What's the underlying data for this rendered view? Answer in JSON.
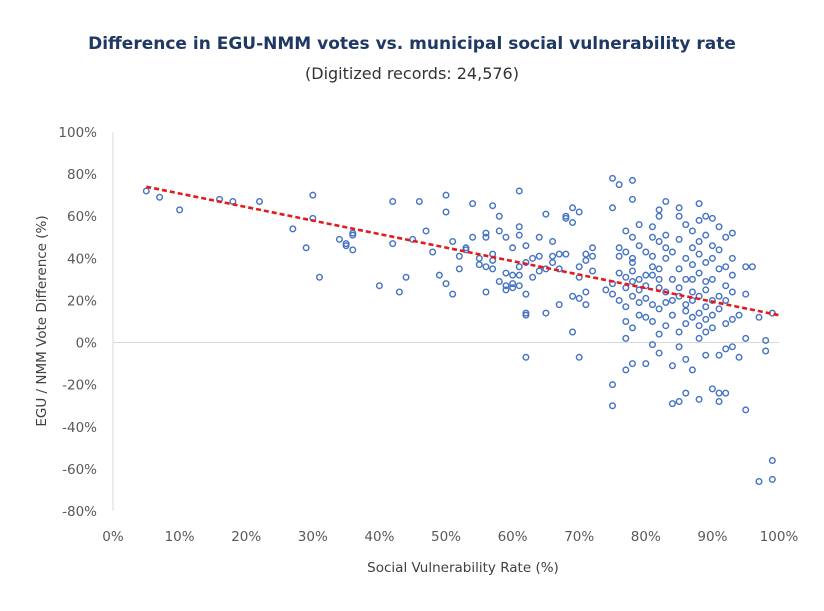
{
  "chart_data": {
    "type": "scatter",
    "title": "Difference in EGU-NMM votes vs. municipal social vulnerability rate",
    "subtitle": "(Digitized records: 24,576)",
    "xlabel": "Social Vulnerability Rate (%)",
    "ylabel": "EGU / NMM Vote Difference (%)",
    "xlim": [
      0,
      100
    ],
    "ylim": [
      -80,
      100
    ],
    "x_ticks": [
      "0%",
      "10%",
      "20%",
      "30%",
      "40%",
      "50%",
      "60%",
      "70%",
      "80%",
      "90%",
      "100%"
    ],
    "y_ticks": [
      "100%",
      "80%",
      "60%",
      "40%",
      "20%",
      "0%",
      "-20%",
      "-40%",
      "-60%",
      "-80%"
    ],
    "grid": false,
    "marker_color": "#4472c4",
    "trendline": {
      "type": "linear",
      "color": "#e41a1c",
      "style": "dashed",
      "start": [
        5,
        74
      ],
      "end": [
        100,
        13
      ]
    },
    "points": [
      [
        5,
        72
      ],
      [
        7,
        69
      ],
      [
        10,
        63
      ],
      [
        16,
        68
      ],
      [
        18,
        67
      ],
      [
        22,
        67
      ],
      [
        27,
        54
      ],
      [
        29,
        45
      ],
      [
        30,
        70
      ],
      [
        30,
        59
      ],
      [
        31,
        31
      ],
      [
        34,
        49
      ],
      [
        35,
        46
      ],
      [
        35,
        47
      ],
      [
        36,
        51
      ],
      [
        36,
        44
      ],
      [
        36,
        52
      ],
      [
        40,
        27
      ],
      [
        42,
        47
      ],
      [
        42,
        67
      ],
      [
        43,
        24
      ],
      [
        44,
        31
      ],
      [
        45,
        49
      ],
      [
        46,
        67
      ],
      [
        47,
        53
      ],
      [
        48,
        43
      ],
      [
        49,
        32
      ],
      [
        50,
        28
      ],
      [
        50,
        70
      ],
      [
        50,
        62
      ],
      [
        51,
        23
      ],
      [
        51,
        48
      ],
      [
        52,
        41
      ],
      [
        52,
        35
      ],
      [
        53,
        44
      ],
      [
        53,
        45
      ],
      [
        54,
        50
      ],
      [
        54,
        66
      ],
      [
        55,
        40
      ],
      [
        55,
        37
      ],
      [
        56,
        36
      ],
      [
        56,
        24
      ],
      [
        56,
        50
      ],
      [
        56,
        52
      ],
      [
        57,
        65
      ],
      [
        57,
        42
      ],
      [
        57,
        39
      ],
      [
        57,
        35
      ],
      [
        58,
        53
      ],
      [
        58,
        29
      ],
      [
        58,
        60
      ],
      [
        59,
        25
      ],
      [
        59,
        50
      ],
      [
        59,
        27
      ],
      [
        59,
        33
      ],
      [
        60,
        28
      ],
      [
        60,
        45
      ],
      [
        60,
        32
      ],
      [
        60,
        26
      ],
      [
        61,
        51
      ],
      [
        61,
        32
      ],
      [
        61,
        36
      ],
      [
        61,
        72
      ],
      [
        61,
        55
      ],
      [
        61,
        27
      ],
      [
        62,
        13
      ],
      [
        62,
        14
      ],
      [
        62,
        -7
      ],
      [
        62,
        38
      ],
      [
        62,
        46
      ],
      [
        62,
        23
      ],
      [
        63,
        40
      ],
      [
        63,
        31
      ],
      [
        64,
        41
      ],
      [
        64,
        50
      ],
      [
        64,
        34
      ],
      [
        65,
        14
      ],
      [
        65,
        61
      ],
      [
        65,
        35
      ],
      [
        66,
        38
      ],
      [
        66,
        41
      ],
      [
        66,
        48
      ],
      [
        67,
        18
      ],
      [
        67,
        42
      ],
      [
        67,
        35
      ],
      [
        68,
        42
      ],
      [
        68,
        59
      ],
      [
        68,
        60
      ],
      [
        69,
        57
      ],
      [
        69,
        5
      ],
      [
        69,
        22
      ],
      [
        69,
        64
      ],
      [
        70,
        -7
      ],
      [
        70,
        36
      ],
      [
        70,
        31
      ],
      [
        70,
        62
      ],
      [
        70,
        21
      ],
      [
        71,
        18
      ],
      [
        71,
        39
      ],
      [
        71,
        24
      ],
      [
        71,
        42
      ],
      [
        72,
        45
      ],
      [
        72,
        41
      ],
      [
        72,
        34
      ],
      [
        74,
        25
      ],
      [
        75,
        78
      ],
      [
        75,
        -20
      ],
      [
        75,
        -30
      ],
      [
        75,
        64
      ],
      [
        75,
        23
      ],
      [
        75,
        28
      ],
      [
        76,
        75
      ],
      [
        76,
        41
      ],
      [
        76,
        33
      ],
      [
        76,
        20
      ],
      [
        76,
        45
      ],
      [
        77,
        -13
      ],
      [
        77,
        2
      ],
      [
        77,
        53
      ],
      [
        77,
        43
      ],
      [
        77,
        31
      ],
      [
        77,
        26
      ],
      [
        77,
        17
      ],
      [
        77,
        10
      ],
      [
        78,
        77
      ],
      [
        78,
        -10
      ],
      [
        78,
        68
      ],
      [
        78,
        38
      ],
      [
        78,
        29
      ],
      [
        78,
        50
      ],
      [
        78,
        7
      ],
      [
        78,
        22
      ],
      [
        78,
        34
      ],
      [
        78,
        40
      ],
      [
        79,
        56
      ],
      [
        79,
        25
      ],
      [
        79,
        13
      ],
      [
        79,
        19
      ],
      [
        79,
        30
      ],
      [
        79,
        46
      ],
      [
        80,
        12
      ],
      [
        80,
        -10
      ],
      [
        80,
        32
      ],
      [
        80,
        43
      ],
      [
        80,
        21
      ],
      [
        80,
        27
      ],
      [
        81,
        50
      ],
      [
        81,
        -1
      ],
      [
        81,
        36
      ],
      [
        81,
        55
      ],
      [
        81,
        32
      ],
      [
        81,
        10
      ],
      [
        81,
        18
      ],
      [
        81,
        41
      ],
      [
        82,
        60
      ],
      [
        82,
        -5
      ],
      [
        82,
        26
      ],
      [
        82,
        63
      ],
      [
        82,
        48
      ],
      [
        82,
        30
      ],
      [
        82,
        16
      ],
      [
        82,
        4
      ],
      [
        82,
        35
      ],
      [
        83,
        67
      ],
      [
        83,
        40
      ],
      [
        83,
        19
      ],
      [
        83,
        24
      ],
      [
        83,
        51
      ],
      [
        83,
        8
      ],
      [
        83,
        45
      ],
      [
        84,
        -29
      ],
      [
        84,
        20
      ],
      [
        84,
        30
      ],
      [
        84,
        -11
      ],
      [
        84,
        13
      ],
      [
        84,
        43
      ],
      [
        85,
        64
      ],
      [
        85,
        -28
      ],
      [
        85,
        60
      ],
      [
        85,
        22
      ],
      [
        85,
        35
      ],
      [
        85,
        5
      ],
      [
        85,
        26
      ],
      [
        85,
        -2
      ],
      [
        85,
        49
      ],
      [
        86,
        -24
      ],
      [
        86,
        40
      ],
      [
        86,
        15
      ],
      [
        86,
        30
      ],
      [
        86,
        56
      ],
      [
        86,
        9
      ],
      [
        86,
        18
      ],
      [
        86,
        -8
      ],
      [
        87,
        -13
      ],
      [
        87,
        45
      ],
      [
        87,
        53
      ],
      [
        87,
        24
      ],
      [
        87,
        30
      ],
      [
        87,
        37
      ],
      [
        87,
        12
      ],
      [
        87,
        20
      ],
      [
        88,
        -27
      ],
      [
        88,
        66
      ],
      [
        88,
        48
      ],
      [
        88,
        2
      ],
      [
        88,
        33
      ],
      [
        88,
        22
      ],
      [
        88,
        58
      ],
      [
        88,
        14
      ],
      [
        88,
        42
      ],
      [
        88,
        8
      ],
      [
        89,
        -6
      ],
      [
        89,
        60
      ],
      [
        89,
        25
      ],
      [
        89,
        17
      ],
      [
        89,
        38
      ],
      [
        89,
        51
      ],
      [
        89,
        11
      ],
      [
        89,
        29
      ],
      [
        89,
        5
      ],
      [
        90,
        -22
      ],
      [
        90,
        59
      ],
      [
        90,
        40
      ],
      [
        90,
        20
      ],
      [
        90,
        13
      ],
      [
        90,
        30
      ],
      [
        90,
        46
      ],
      [
        90,
        7
      ],
      [
        91,
        -28
      ],
      [
        91,
        -24
      ],
      [
        91,
        55
      ],
      [
        91,
        35
      ],
      [
        91,
        22
      ],
      [
        91,
        16
      ],
      [
        91,
        -6
      ],
      [
        91,
        44
      ],
      [
        92,
        -24
      ],
      [
        92,
        50
      ],
      [
        92,
        27
      ],
      [
        92,
        9
      ],
      [
        92,
        36
      ],
      [
        92,
        -3
      ],
      [
        92,
        20
      ],
      [
        93,
        52
      ],
      [
        93,
        32
      ],
      [
        93,
        11
      ],
      [
        93,
        24
      ],
      [
        93,
        -2
      ],
      [
        93,
        40
      ],
      [
        94,
        13
      ],
      [
        94,
        -7
      ],
      [
        95,
        -32
      ],
      [
        95,
        36
      ],
      [
        95,
        23
      ],
      [
        95,
        2
      ],
      [
        96,
        36
      ],
      [
        97,
        12
      ],
      [
        97,
        -66
      ],
      [
        98,
        -4
      ],
      [
        98,
        1
      ],
      [
        99,
        -56
      ],
      [
        99,
        -65
      ],
      [
        99,
        14
      ]
    ]
  }
}
